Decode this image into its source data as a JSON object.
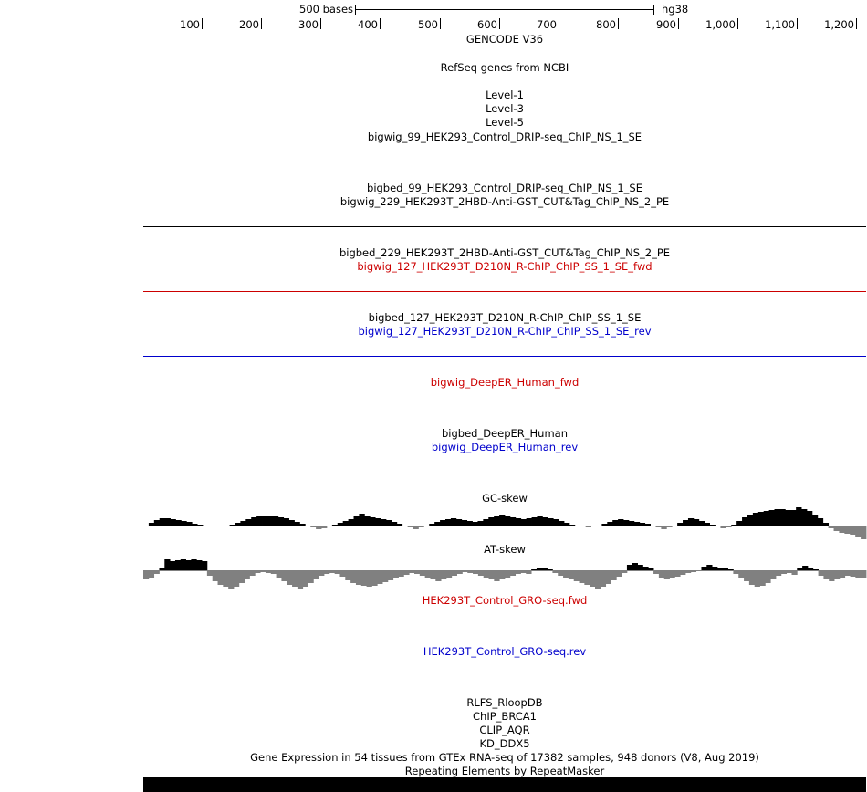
{
  "ruler": {
    "scale_label": "500 bases",
    "assembly": "hg38",
    "ticks": [
      {
        "label": "100"
      },
      {
        "label": "200"
      },
      {
        "label": "300"
      },
      {
        "label": "400"
      },
      {
        "label": "500"
      },
      {
        "label": "600"
      },
      {
        "label": "700"
      },
      {
        "label": "800"
      },
      {
        "label": "900"
      },
      {
        "label": "1,000"
      },
      {
        "label": "1,100"
      },
      {
        "label": "1,200"
      }
    ]
  },
  "tracks": {
    "gencode": "GENCODE V36",
    "refseq": "RefSeq genes from NCBI",
    "level1": "Level-1",
    "level3": "Level-3",
    "level5": "Level-5",
    "bigwig_99": "bigwig_99_HEK293_Control_DRIP-seq_ChIP_NS_1_SE",
    "bigbed_99": "bigbed_99_HEK293_Control_DRIP-seq_ChIP_NS_1_SE",
    "bigwig_229": "bigwig_229_HEK293T_2HBD-Anti-GST_CUT&Tag_ChIP_NS_2_PE",
    "bigbed_229": "bigbed_229_HEK293T_2HBD-Anti-GST_CUT&Tag_ChIP_NS_2_PE",
    "bigwig_127_fwd": "bigwig_127_HEK293T_D210N_R-ChIP_ChIP_SS_1_SE_fwd",
    "bigbed_127": "bigbed_127_HEK293T_D210N_R-ChIP_ChIP_SS_1_SE",
    "bigwig_127_rev": "bigwig_127_HEK293T_D210N_R-ChIP_ChIP_SS_1_SE_rev",
    "deeper_fwd": "bigwig_DeepER_Human_fwd",
    "deeper_bed": "bigbed_DeepER_Human",
    "deeper_rev": "bigwig_DeepER_Human_rev",
    "gc_skew": "GC-skew",
    "at_skew": "AT-skew",
    "gro_fwd": "HEK293T_Control_GRO-seq.fwd",
    "gro_rev": "HEK293T_Control_GRO-seq.rev",
    "rlfs": "RLFS_RloopDB",
    "chip_brca1": "ChIP_BRCA1",
    "clip_aqr": "CLIP_AQR",
    "kd_ddx5": "KD_DDX5",
    "gtex": "Gene Expression in 54 tissues from GTEx RNA-seq of 17382 samples, 948 donors (V8, Aug 2019)",
    "repeatmasker": "Repeating Elements by RepeatMasker"
  },
  "colors": {
    "black": "#000000",
    "fwd_red": "#cc0000",
    "rev_blue": "#0000cc",
    "negative_gray": "#808080"
  },
  "skew_data": {
    "gc": [
      0,
      3,
      6,
      8,
      8,
      7,
      6,
      5,
      4,
      2,
      1,
      0,
      0,
      -1,
      -1,
      0,
      1,
      3,
      5,
      7,
      9,
      10,
      11,
      11,
      10,
      9,
      8,
      6,
      4,
      2,
      0,
      -2,
      -4,
      -3,
      -1,
      1,
      3,
      5,
      7,
      10,
      13,
      11,
      9,
      8,
      7,
      6,
      4,
      2,
      0,
      -2,
      -4,
      -2,
      0,
      2,
      4,
      6,
      7,
      8,
      7,
      6,
      5,
      4,
      5,
      7,
      9,
      10,
      12,
      10,
      9,
      8,
      7,
      8,
      9,
      10,
      9,
      8,
      7,
      5,
      3,
      1,
      0,
      -1,
      -2,
      -1,
      0,
      2,
      4,
      6,
      7,
      6,
      5,
      4,
      3,
      2,
      0,
      -2,
      -4,
      -2,
      0,
      3,
      6,
      8,
      7,
      5,
      3,
      1,
      -1,
      -3,
      -2,
      1,
      5,
      9,
      12,
      14,
      15,
      16,
      17,
      18,
      18,
      17,
      17,
      20,
      18,
      16,
      12,
      8,
      3,
      -3,
      -6,
      -8,
      -9,
      -10,
      -12,
      -15
    ],
    "at": [
      -10,
      -8,
      -4,
      3,
      12,
      10,
      11,
      12,
      11,
      12,
      11,
      10,
      -6,
      -12,
      -16,
      -18,
      -20,
      -18,
      -14,
      -10,
      -6,
      -3,
      -2,
      -3,
      -4,
      -8,
      -12,
      -16,
      -18,
      -20,
      -18,
      -14,
      -10,
      -6,
      -4,
      -3,
      -4,
      -7,
      -11,
      -14,
      -16,
      -17,
      -18,
      -17,
      -15,
      -13,
      -11,
      -9,
      -7,
      -5,
      -3,
      -4,
      -6,
      -8,
      -10,
      -12,
      -10,
      -8,
      -6,
      -4,
      -2,
      -3,
      -4,
      -6,
      -8,
      -10,
      -12,
      -10,
      -8,
      -6,
      -4,
      -3,
      -4,
      1,
      3,
      2,
      1,
      -3,
      -6,
      -8,
      -10,
      -12,
      -14,
      -16,
      -18,
      -20,
      -18,
      -15,
      -11,
      -7,
      -3,
      6,
      8,
      6,
      4,
      2,
      -4,
      -8,
      -10,
      -9,
      -7,
      -5,
      -3,
      -2,
      -1,
      4,
      6,
      4,
      3,
      2,
      1,
      -4,
      -8,
      -12,
      -16,
      -18,
      -17,
      -14,
      -10,
      -6,
      -4,
      -3,
      -5,
      3,
      5,
      3,
      1,
      -6,
      -10,
      -12,
      -10,
      -8,
      -6,
      -7,
      -8,
      -8
    ]
  }
}
